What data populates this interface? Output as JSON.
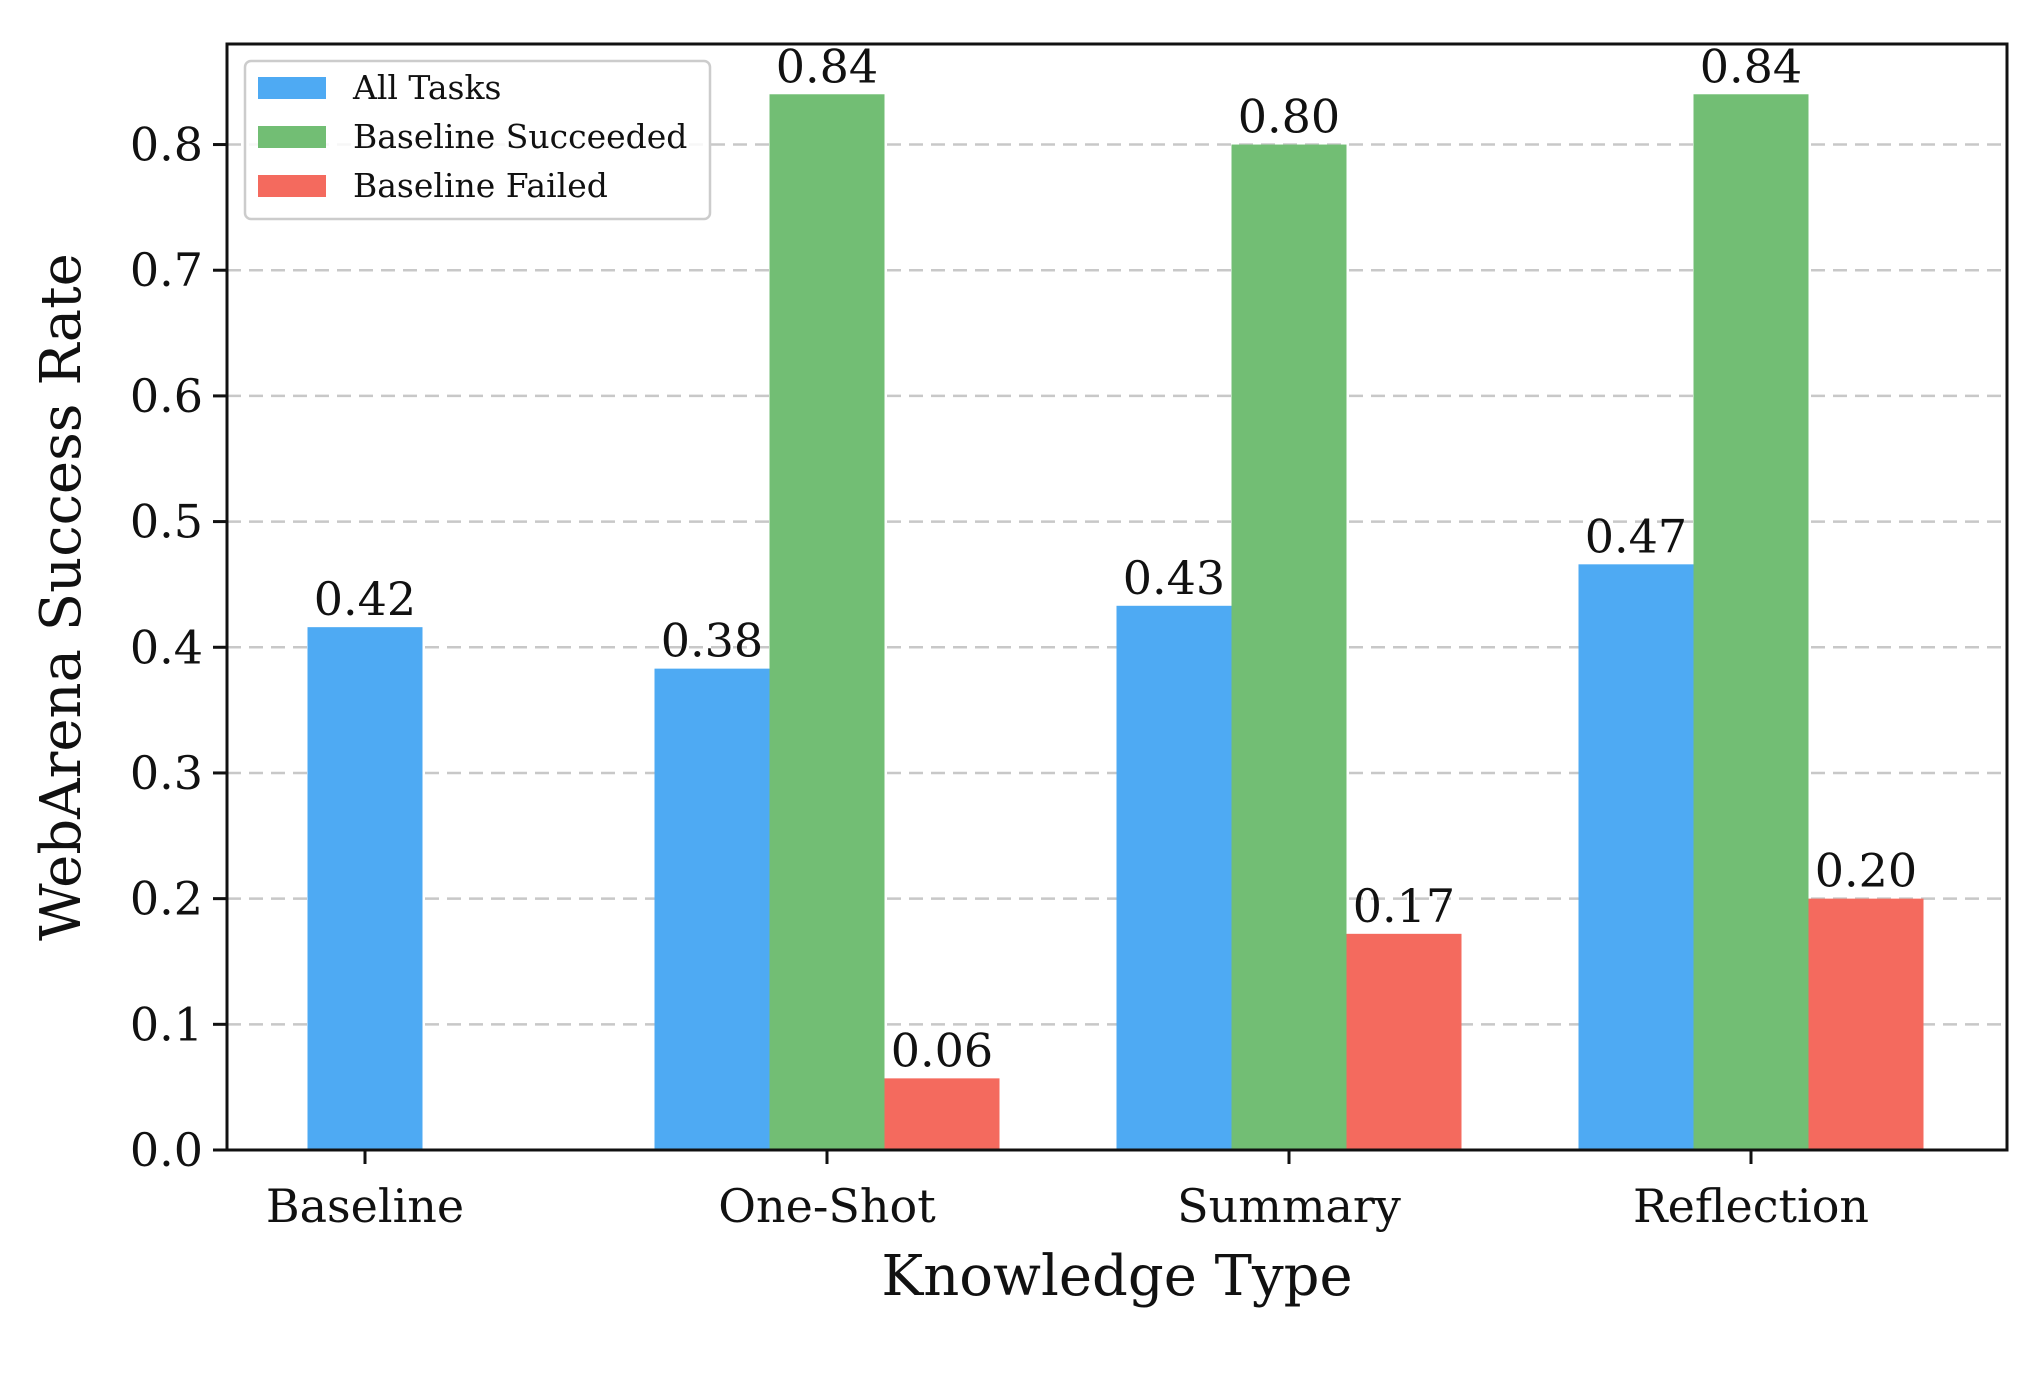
{
  "chart_data": {
    "type": "bar",
    "title": "",
    "xlabel": "Knowledge Type",
    "ylabel": "WebArena Success Rate",
    "ylim": [
      0.0,
      0.88
    ],
    "yticks": [
      "0.0",
      "0.1",
      "0.2",
      "0.3",
      "0.4",
      "0.5",
      "0.6",
      "0.7",
      "0.8"
    ],
    "ytick_values": [
      0.0,
      0.1,
      0.2,
      0.3,
      0.4,
      0.5,
      0.6,
      0.7,
      0.8
    ],
    "grid": "horizontal dashed",
    "legend_position": "top-left",
    "categories": [
      "Baseline",
      "One-Shot",
      "Summary",
      "Reflection"
    ],
    "series": [
      {
        "name": "All Tasks",
        "color": "#4eaaf3",
        "values": [
          0.416,
          0.383,
          0.433,
          0.466
        ],
        "labels": [
          "0.42",
          "0.38",
          "0.43",
          "0.47"
        ]
      },
      {
        "name": "Baseline Succeeded",
        "color": "#72be74",
        "values": [
          null,
          0.84,
          0.8,
          0.84
        ],
        "labels": [
          "",
          "0.84",
          "0.80",
          "0.84"
        ]
      },
      {
        "name": "Baseline Failed",
        "color": "#f46a5e",
        "values": [
          null,
          0.057,
          0.172,
          0.2
        ],
        "labels": [
          "",
          "0.06",
          "0.17",
          "0.20"
        ]
      }
    ]
  }
}
